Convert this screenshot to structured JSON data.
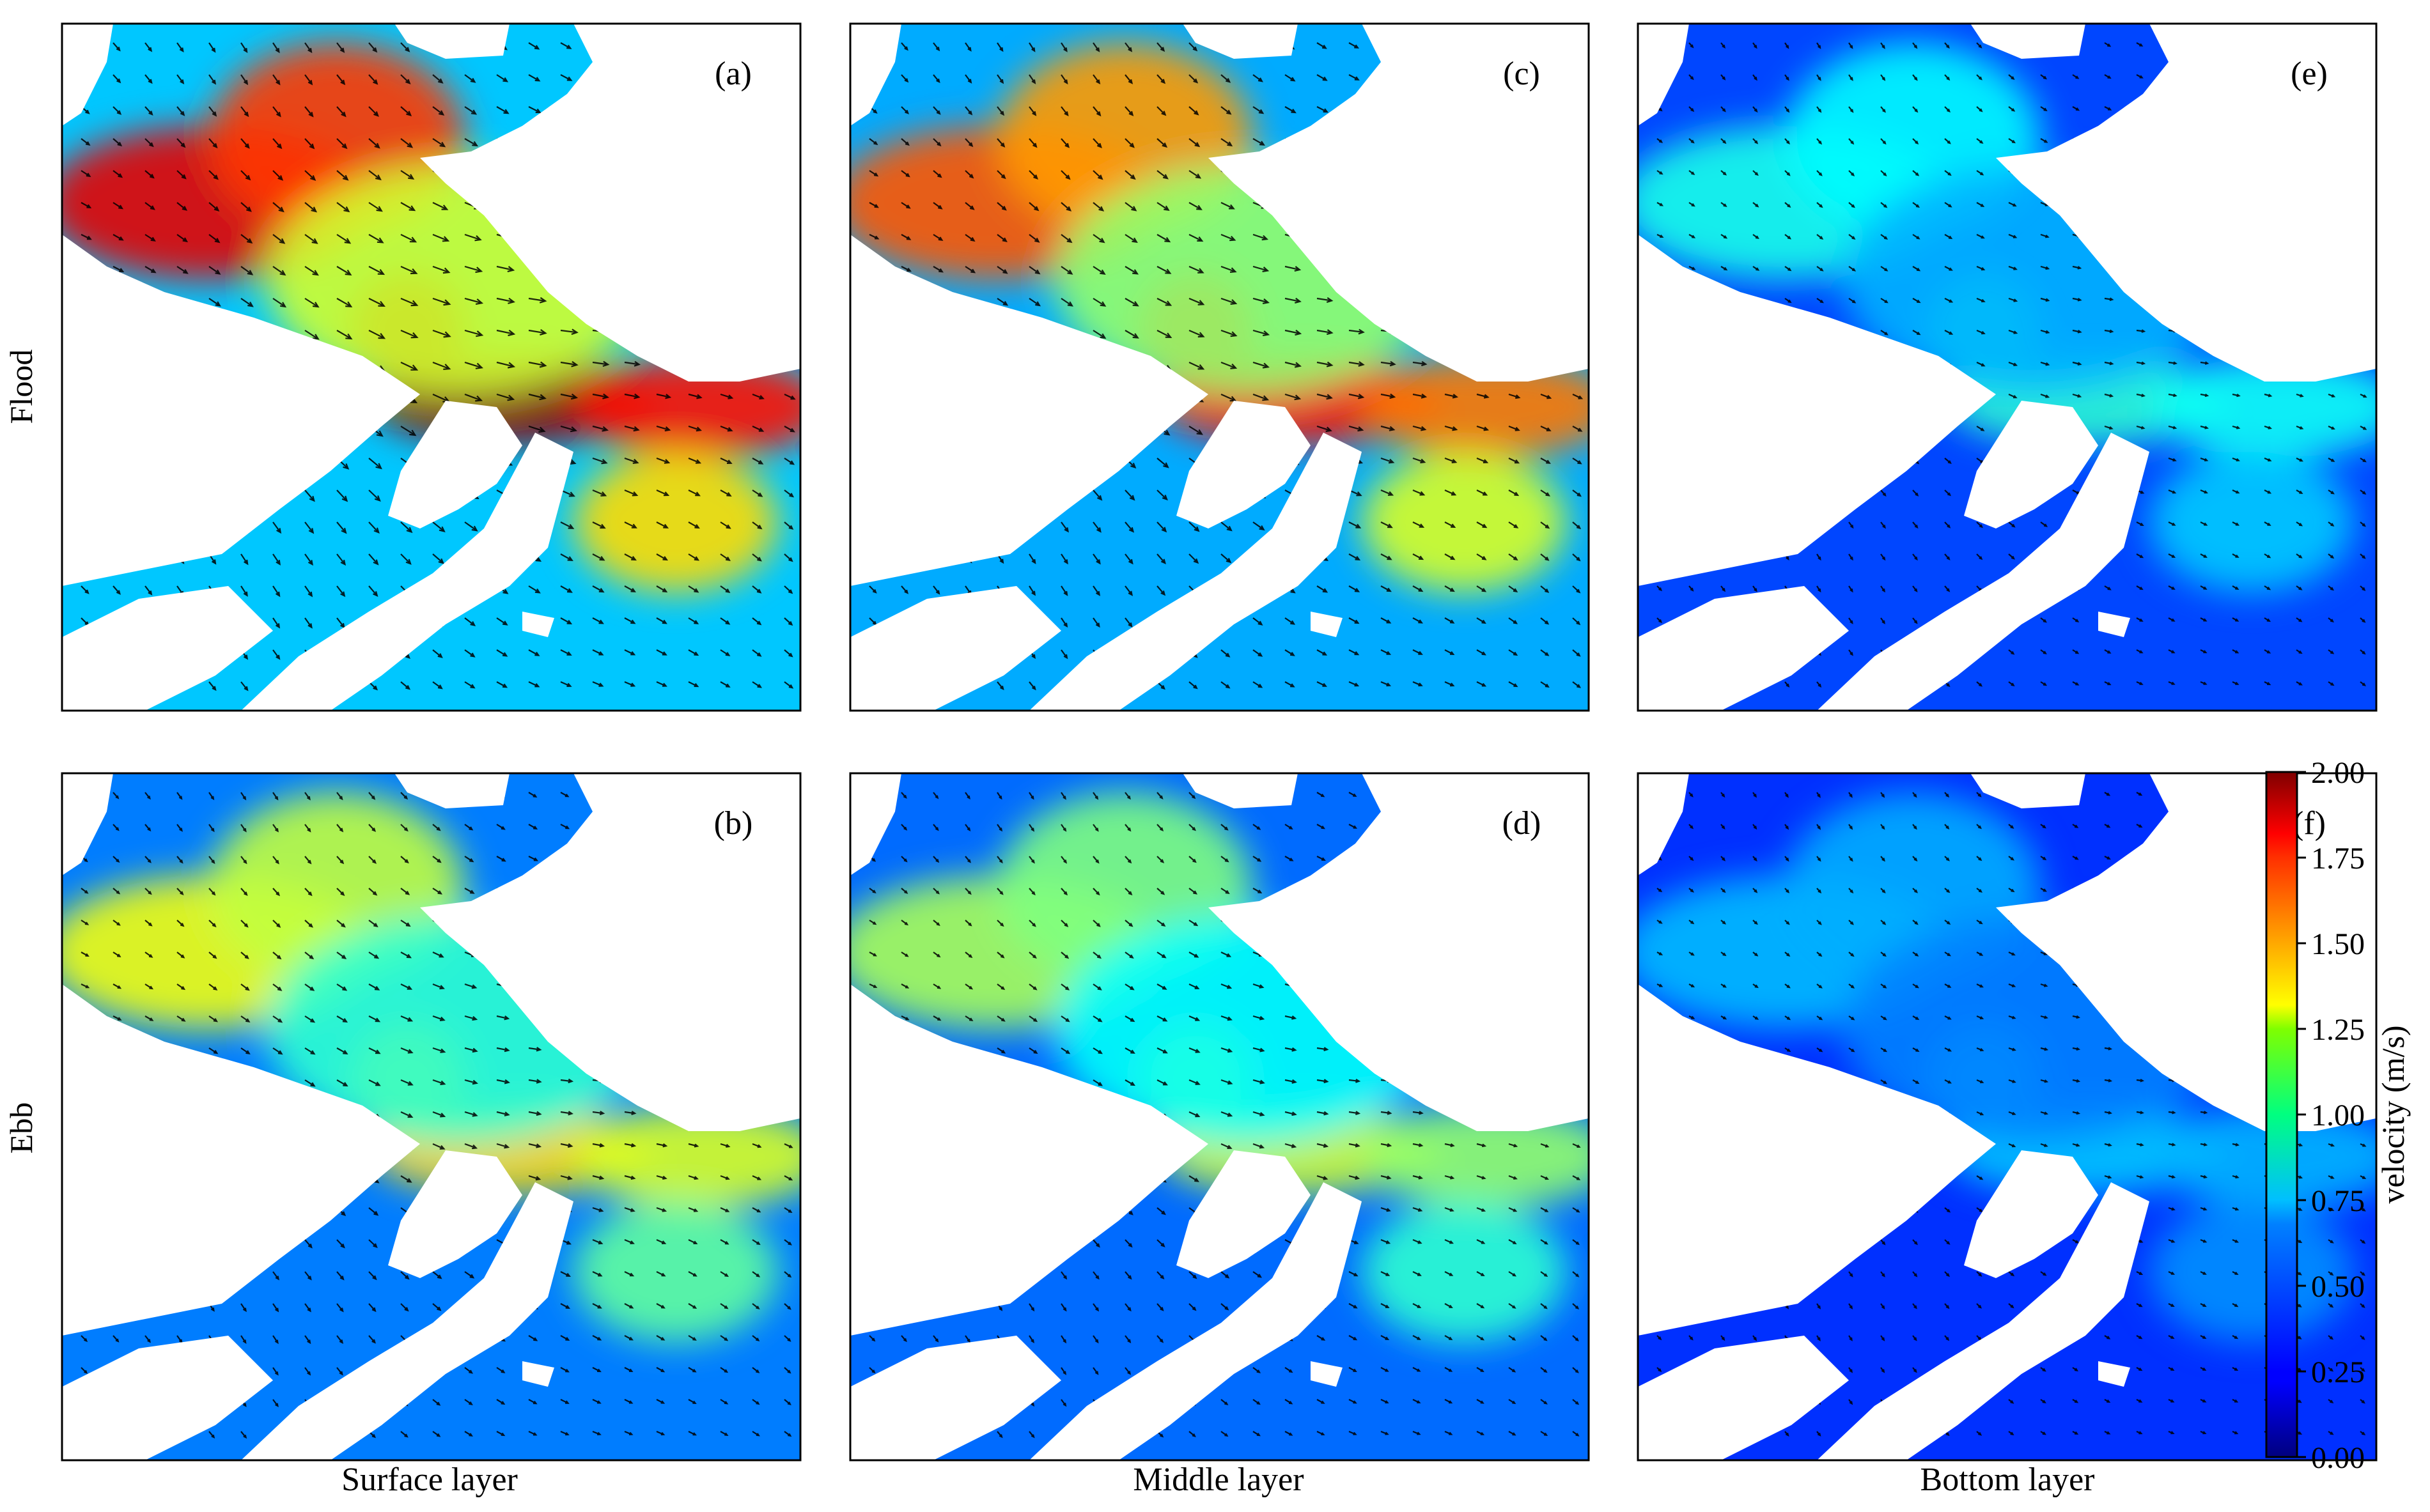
{
  "figure": {
    "row_labels": [
      "Flood",
      "Ebb"
    ],
    "col_labels": [
      "Surface layer",
      "Middle layer",
      "Bottom layer"
    ]
  },
  "colorbar": {
    "label": "velocity (m/s)",
    "ticks": [
      "0.00",
      "0.25",
      "0.50",
      "0.75",
      "1.00",
      "1.25",
      "1.50",
      "1.75",
      "2.00"
    ],
    "range": [
      0,
      2
    ],
    "colormap": "jet"
  },
  "chart_data": [
    {
      "type": "heatmap",
      "panel_label": "(a)",
      "row": "Flood",
      "column": "Surface layer",
      "intensity": 1.0
    },
    {
      "type": "heatmap",
      "panel_label": "(b)",
      "row": "Ebb",
      "column": "Surface layer",
      "intensity": 0.6
    },
    {
      "type": "heatmap",
      "panel_label": "(c)",
      "row": "Flood",
      "column": "Middle layer",
      "intensity": 0.85
    },
    {
      "type": "heatmap",
      "panel_label": "(d)",
      "row": "Ebb",
      "column": "Middle layer",
      "intensity": 0.5
    },
    {
      "type": "heatmap",
      "panel_label": "(e)",
      "row": "Flood",
      "column": "Bottom layer",
      "intensity": 0.3
    },
    {
      "type": "heatmap",
      "panel_label": "(f)",
      "row": "Ebb",
      "column": "Bottom layer",
      "intensity": 0.18
    }
  ]
}
